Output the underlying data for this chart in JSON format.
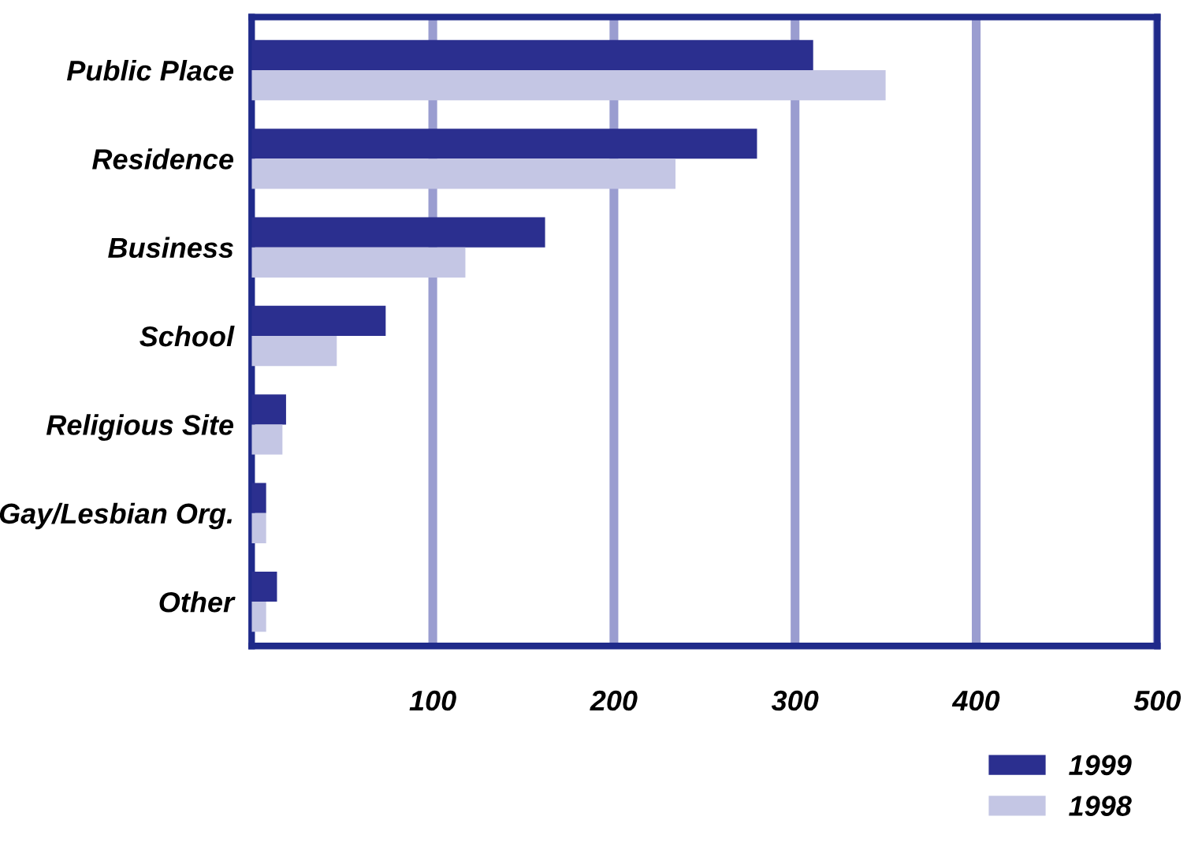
{
  "chart_data": {
    "type": "bar",
    "orientation": "horizontal",
    "categories": [
      "Public Place",
      "Residence",
      "Business",
      "School",
      "Religious Site",
      "Gay/Lesbian Org.",
      "Other"
    ],
    "series": [
      {
        "name": "1999",
        "color": "#2b2f8f",
        "values": [
          310,
          279,
          162,
          74,
          19,
          8,
          14
        ]
      },
      {
        "name": "1998",
        "color": "#c4c6e4",
        "values": [
          350,
          234,
          118,
          47,
          17,
          8,
          8
        ]
      }
    ],
    "xlim": [
      0,
      500
    ],
    "xticks": [
      100,
      200,
      300,
      400,
      500
    ],
    "grid": "x",
    "legend": "bottom right"
  }
}
